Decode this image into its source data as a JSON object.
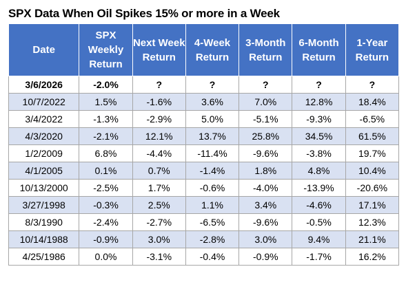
{
  "title": "SPX Data When Oil Spikes 15% or more in a Week",
  "table": {
    "headers": [
      "Date",
      "SPX Weekly Return",
      "Next Week Return",
      "4-Week Return",
      "3-Month Return",
      "6-Month Return",
      "1-Year Return"
    ],
    "rows": [
      [
        "3/6/2026",
        "-2.0%",
        "?",
        "?",
        "?",
        "?",
        "?"
      ],
      [
        "10/7/2022",
        "1.5%",
        "-1.6%",
        "3.6%",
        "7.0%",
        "12.8%",
        "18.4%"
      ],
      [
        "3/4/2022",
        "-1.3%",
        "-2.9%",
        "5.0%",
        "-5.1%",
        "-9.3%",
        "-6.5%"
      ],
      [
        "4/3/2020",
        "-2.1%",
        "12.1%",
        "13.7%",
        "25.8%",
        "34.5%",
        "61.5%"
      ],
      [
        "1/2/2009",
        "6.8%",
        "-4.4%",
        "-11.4%",
        "-9.6%",
        "-3.8%",
        "19.7%"
      ],
      [
        "4/1/2005",
        "0.1%",
        "0.7%",
        "-1.4%",
        "1.8%",
        "4.8%",
        "10.4%"
      ],
      [
        "10/13/2000",
        "-2.5%",
        "1.7%",
        "-0.6%",
        "-4.0%",
        "-13.9%",
        "-20.6%"
      ],
      [
        "3/27/1998",
        "-0.3%",
        "2.5%",
        "1.1%",
        "3.4%",
        "-4.6%",
        "17.1%"
      ],
      [
        "8/3/1990",
        "-2.4%",
        "-2.7%",
        "-6.5%",
        "-9.6%",
        "-0.5%",
        "12.3%"
      ],
      [
        "10/14/1988",
        "-0.9%",
        "3.0%",
        "-2.8%",
        "3.0%",
        "9.4%",
        "21.1%"
      ],
      [
        "4/25/1986",
        "0.0%",
        "-3.1%",
        "-0.4%",
        "-0.9%",
        "-1.7%",
        "16.2%"
      ]
    ]
  },
  "colors": {
    "header_bg": "#4472c4",
    "header_text": "#ffffff",
    "band_bg": "#d9e1f2",
    "border": "#a6a6a6"
  }
}
